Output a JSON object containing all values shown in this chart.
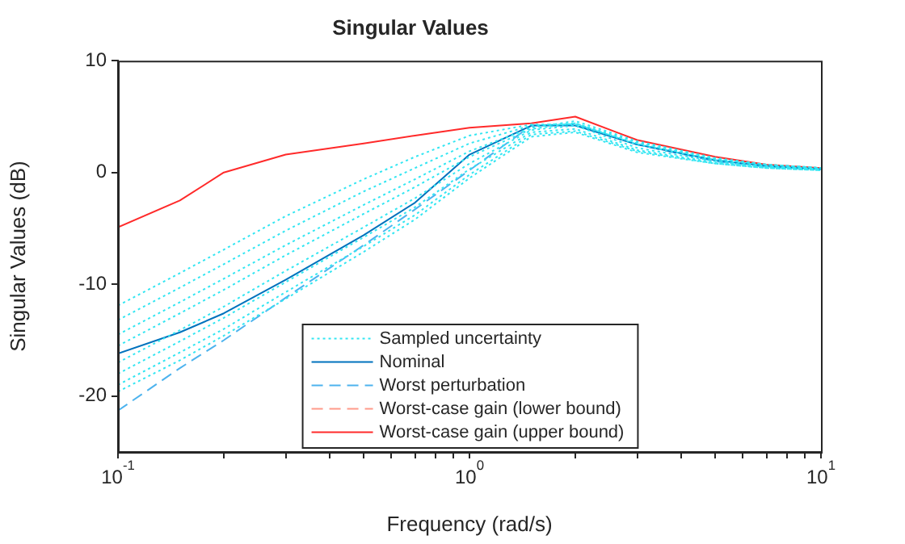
{
  "chart_data": {
    "type": "line",
    "title": "Singular Values",
    "xlabel": "Frequency (rad/s)",
    "ylabel": "Singular Values (dB)",
    "x": [
      0.1,
      0.15,
      0.2,
      0.3,
      0.5,
      0.7,
      1,
      1.5,
      2,
      3,
      5,
      7,
      10
    ],
    "log": "x",
    "xlim": [
      0.1,
      10
    ],
    "xticks": [
      {
        "value": 0.1,
        "label": "10$^{-1}$"
      },
      {
        "value": 0.2,
        "label": null
      },
      {
        "value": 0.3,
        "label": null
      },
      {
        "value": 0.4,
        "label": null
      },
      {
        "value": 0.5,
        "label": null
      },
      {
        "value": 0.6,
        "label": null
      },
      {
        "value": 0.7,
        "label": null
      },
      {
        "value": 0.8,
        "label": null
      },
      {
        "value": 0.9,
        "label": null
      },
      {
        "value": 1,
        "label": "10$^{0}$"
      },
      {
        "value": 2,
        "label": null
      },
      {
        "value": 3,
        "label": null
      },
      {
        "value": 4,
        "label": null
      },
      {
        "value": 5,
        "label": null
      },
      {
        "value": 6,
        "label": null
      },
      {
        "value": 7,
        "label": null
      },
      {
        "value": 8,
        "label": null
      },
      {
        "value": 9,
        "label": null
      },
      {
        "value": 10,
        "label": "10$^{1}$"
      }
    ],
    "ylim": [
      -25,
      10
    ],
    "yticks": [
      -20,
      -10,
      0,
      10
    ],
    "grid": false,
    "legend": "bottom",
    "series": [
      {
        "name": "Sampled uncertainty",
        "color": "#33e6f2",
        "line_style": "dotted",
        "values": [
          -11.9,
          -9.0,
          -6.9,
          -3.9,
          -0.6,
          1.4,
          3.3,
          4.3,
          4.3,
          2.6,
          1.2,
          0.7,
          0.4
        ]
      },
      {
        "color": "#33e6f2",
        "line_style": "dotted",
        "values": [
          -13.2,
          -10.3,
          -8.2,
          -5.2,
          -1.7,
          0.4,
          2.6,
          4.2,
          4.4,
          2.7,
          1.2,
          0.7,
          0.4
        ]
      },
      {
        "color": "#33e6f2",
        "line_style": "dotted",
        "values": [
          -14.5,
          -11.6,
          -9.5,
          -6.5,
          -2.9,
          -0.6,
          1.9,
          4.0,
          4.6,
          2.8,
          1.3,
          0.7,
          0.4
        ]
      },
      {
        "color": "#33e6f2",
        "line_style": "dotted",
        "values": [
          -15.5,
          -12.6,
          -10.5,
          -7.4,
          -3.7,
          -1.3,
          1.4,
          3.9,
          4.4,
          2.5,
          1.1,
          0.6,
          0.3
        ]
      },
      {
        "color": "#33e6f2",
        "line_style": "dotted",
        "values": [
          -17.0,
          -14.1,
          -12.0,
          -8.8,
          -4.9,
          -2.3,
          0.8,
          3.8,
          4.2,
          2.2,
          1.0,
          0.5,
          0.3
        ]
      },
      {
        "color": "#33e6f2",
        "line_style": "dotted",
        "values": [
          -18.0,
          -15.1,
          -13.0,
          -9.8,
          -5.8,
          -3.1,
          0.3,
          3.6,
          3.9,
          2.0,
          0.9,
          0.5,
          0.3
        ]
      },
      {
        "color": "#33e6f2",
        "line_style": "dotted",
        "values": [
          -19.0,
          -16.1,
          -14.0,
          -10.7,
          -6.6,
          -3.8,
          -0.2,
          3.4,
          3.7,
          1.9,
          0.8,
          0.4,
          0.2
        ]
      },
      {
        "color": "#33e6f2",
        "line_style": "dotted",
        "values": [
          -19.6,
          -16.8,
          -14.6,
          -11.3,
          -7.1,
          -4.2,
          -0.5,
          3.2,
          3.6,
          1.8,
          0.8,
          0.4,
          0.2
        ]
      },
      {
        "name": "Nominal",
        "color": "#0072bd",
        "line_style": "solid",
        "values": [
          -16.2,
          -14.3,
          -12.6,
          -9.6,
          -5.6,
          -2.7,
          1.6,
          4.2,
          4.2,
          2.5,
          1.1,
          0.6,
          0.3
        ]
      },
      {
        "name": "Worst perturbation",
        "color": "#4db3ee",
        "line_style": "dashed",
        "values": [
          -21.3,
          -17.5,
          -15.0,
          -11.2,
          -6.5,
          -3.3,
          0.2,
          4.2,
          4.3,
          2.5,
          1.0,
          0.5,
          0.3
        ]
      },
      {
        "name": "Worst-case gain (lower bound)",
        "color": "#ff9a8a",
        "line_style": "dashed",
        "values": [
          null,
          null,
          null,
          null,
          null,
          null,
          null,
          null,
          null,
          null,
          null,
          null,
          null
        ]
      },
      {
        "name": "Worst-case gain (upper bound)",
        "color": "#ff2a2a",
        "line_style": "solid",
        "values": [
          -4.9,
          -2.5,
          0.0,
          1.6,
          2.6,
          3.3,
          4.0,
          4.4,
          5.0,
          2.9,
          1.4,
          0.7,
          0.4
        ]
      }
    ]
  }
}
